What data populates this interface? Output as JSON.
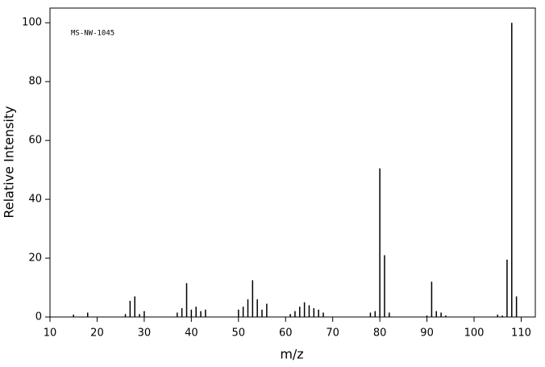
{
  "chart_data": {
    "type": "bar",
    "annotation": "MS-NW-1045",
    "xlabel": "m/z",
    "ylabel": "Relative Intensity",
    "x": [
      15,
      18,
      26,
      27,
      28,
      29,
      30,
      37,
      38,
      39,
      40,
      41,
      42,
      43,
      50,
      51,
      52,
      53,
      54,
      55,
      56,
      61,
      62,
      63,
      64,
      65,
      66,
      67,
      68,
      78,
      79,
      80,
      81,
      82,
      90,
      91,
      92,
      93,
      94,
      105,
      106,
      107,
      108,
      109
    ],
    "values": [
      0.8,
      1.5,
      1,
      5.5,
      7,
      1,
      2,
      1.5,
      3,
      11.5,
      2.5,
      3.5,
      2,
      2.5,
      2.5,
      3.5,
      6,
      12.5,
      6,
      2.5,
      4.5,
      1,
      2,
      3.5,
      5,
      4,
      3,
      2.5,
      1.5,
      1.5,
      2,
      50.5,
      21,
      1.5,
      0.5,
      12,
      2,
      1.5,
      0.5,
      0.8,
      0.5,
      19.5,
      100,
      7
    ],
    "color": "#000000",
    "xlim": [
      10,
      113
    ],
    "xticks": [
      10,
      20,
      30,
      40,
      50,
      60,
      70,
      80,
      90,
      100,
      110
    ],
    "ylim": [
      0,
      105
    ],
    "yticks": [
      0,
      20,
      40,
      60,
      80,
      100
    ]
  }
}
